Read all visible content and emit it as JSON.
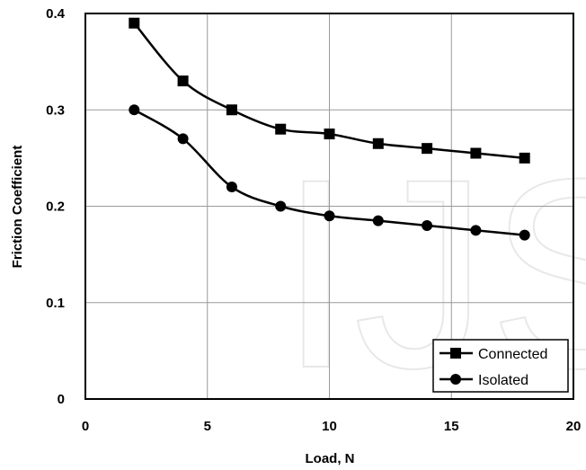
{
  "chart_data": {
    "type": "line",
    "title": "",
    "xlabel": "Load, N",
    "ylabel": "Friction Coefficient",
    "xlim": [
      0,
      20
    ],
    "ylim": [
      0,
      0.4
    ],
    "xticks": [
      0,
      5,
      10,
      15,
      20
    ],
    "xtick_labels": [
      "0",
      "5",
      "10",
      "15",
      "20"
    ],
    "yticks": [
      0,
      0.1,
      0.2,
      0.3,
      0.4
    ],
    "ytick_labels": [
      "0",
      "0.1",
      "0.2",
      "0.3",
      "0.4"
    ],
    "grid": true,
    "legend_position": "bottom-right",
    "x": [
      2,
      4,
      6,
      8,
      10,
      12,
      14,
      16,
      18
    ],
    "series": [
      {
        "name": "Connected",
        "marker": "square",
        "values": [
          0.39,
          0.33,
          0.3,
          0.28,
          0.275,
          0.265,
          0.26,
          0.255,
          0.25
        ]
      },
      {
        "name": "Isolated",
        "marker": "circle",
        "values": [
          0.3,
          0.27,
          0.22,
          0.2,
          0.19,
          0.185,
          0.18,
          0.175,
          0.17
        ]
      }
    ],
    "line_color": "#000000",
    "watermark": "IJS"
  }
}
